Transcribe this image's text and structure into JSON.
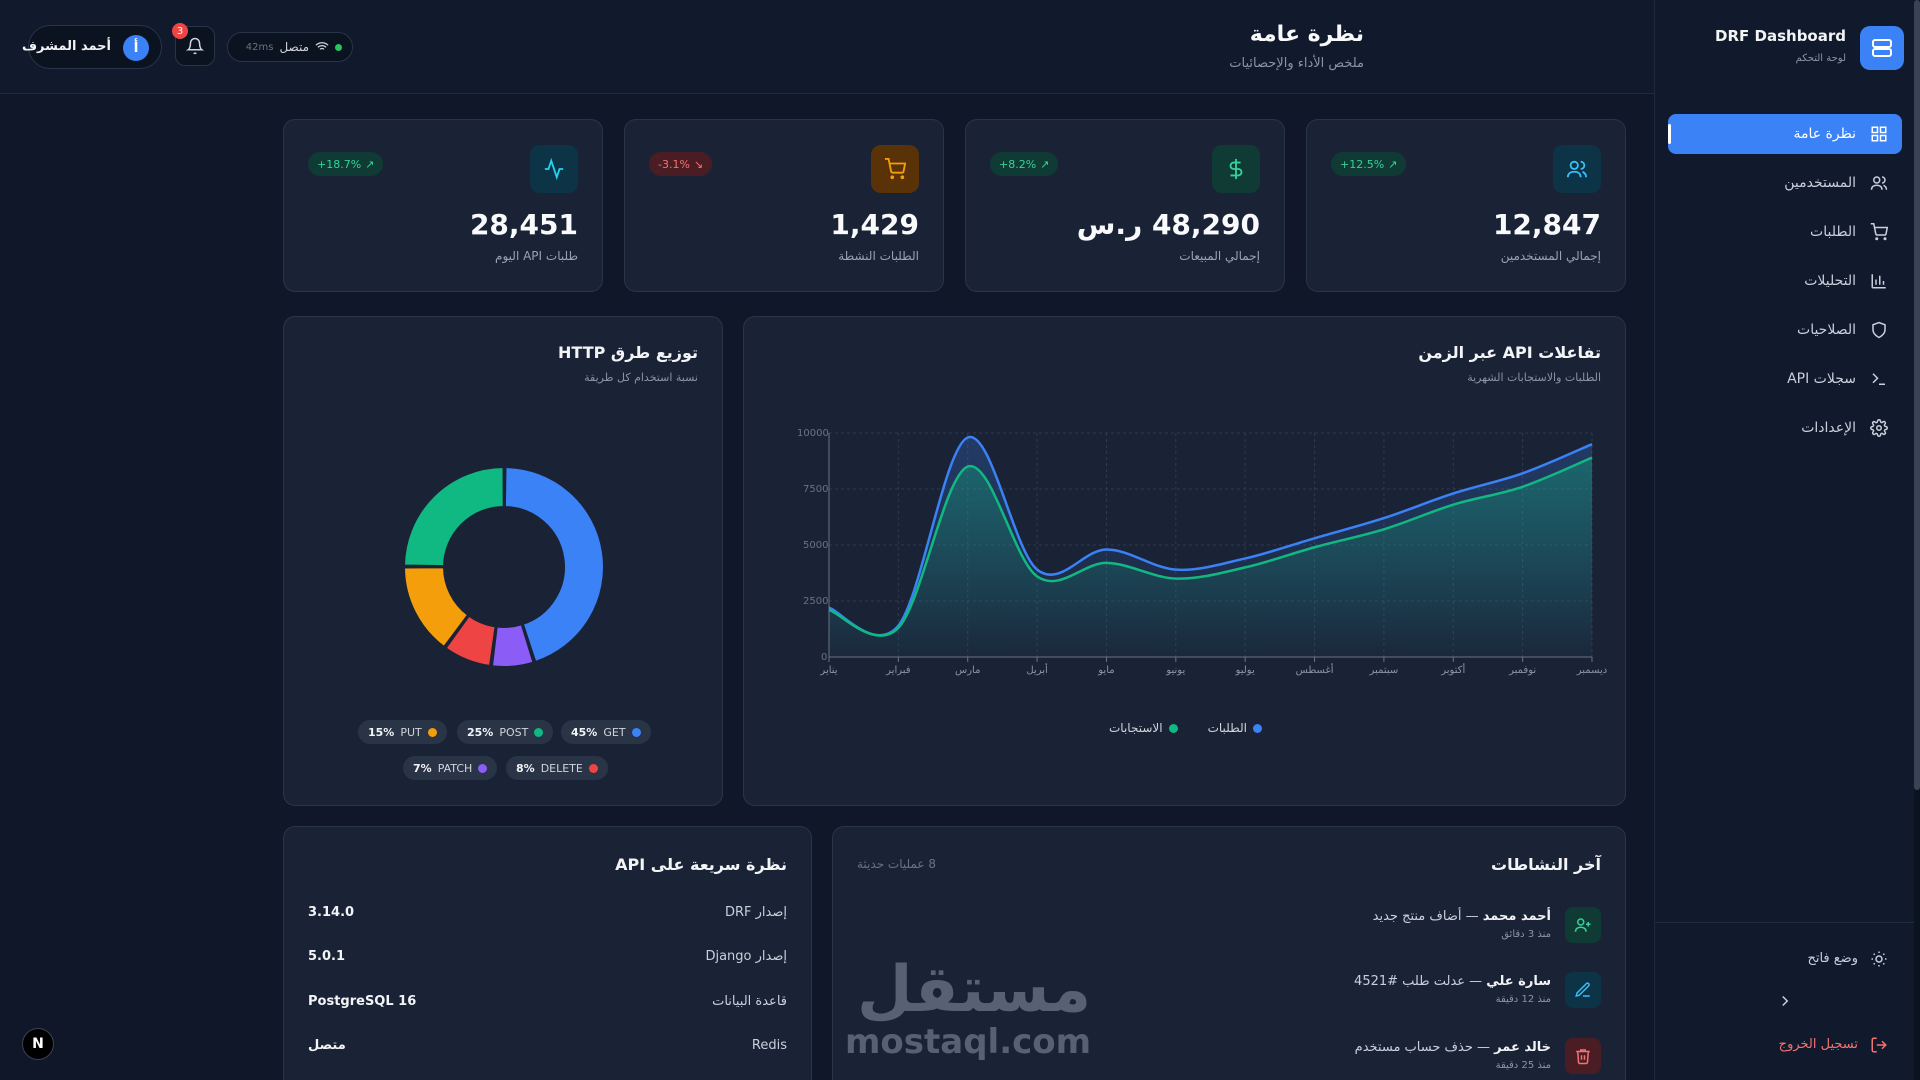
{
  "brand": {
    "title": "DRF Dashboard",
    "subtitle": "لوحة التحكم"
  },
  "sidebar": {
    "items": [
      {
        "label": "نظرة عامة",
        "icon": "grid-icon",
        "active": true
      },
      {
        "label": "المستخدمين",
        "icon": "users-icon"
      },
      {
        "label": "الطلبات",
        "icon": "cart-icon"
      },
      {
        "label": "التحليلات",
        "icon": "bar-chart-icon"
      },
      {
        "label": "الصلاحيات",
        "icon": "shield-icon"
      },
      {
        "label": "سجلات API",
        "icon": "terminal-icon"
      },
      {
        "label": "الإعدادات",
        "icon": "gear-icon"
      }
    ],
    "theme_toggle": "وضع فاتح",
    "logout": "تسجيل الخروج"
  },
  "header": {
    "title": "نظرة عامة",
    "subtitle": "ملخص الأداء والإحصائيات",
    "user_name": "أحمد المشرف",
    "avatar_letter": "أ",
    "notifications_count": "3",
    "status_text": "متصل",
    "latency": "42ms"
  },
  "stats": [
    {
      "value": "12,847",
      "label": "إجمالي المستخدمين",
      "trend": "+12.5%",
      "direction": "up",
      "icon": "users-icon",
      "color": "#38bdf8"
    },
    {
      "value": "48,290 ر.س",
      "label": "إجمالي المبيعات",
      "trend": "+8.2%",
      "direction": "up",
      "icon": "dollar-icon",
      "color": "#34d399"
    },
    {
      "value": "1,429",
      "label": "الطلبات النشطة",
      "trend": "-3.1%",
      "direction": "down",
      "icon": "cart-icon",
      "color": "#f59e0b"
    },
    {
      "value": "28,451",
      "label": "طلبات API اليوم",
      "trend": "+18.7%",
      "direction": "up",
      "icon": "activity-icon",
      "color": "#22d3ee"
    }
  ],
  "line_card": {
    "title": "تفاعلات API عبر الزمن",
    "subtitle": "الطلبات والاستجابات الشهرية"
  },
  "donut_card": {
    "title": "توزيع طرق HTTP",
    "subtitle": "نسبة استخدام كل طريقة"
  },
  "chart_data": [
    {
      "type": "area",
      "title": "تفاعلات API عبر الزمن",
      "categories": [
        "يناير",
        "فبراير",
        "مارس",
        "أبريل",
        "مايو",
        "يونيو",
        "يوليو",
        "أغسطس",
        "سبتمبر",
        "أكتوبر",
        "نوفمبر",
        "ديسمبر"
      ],
      "ylim": [
        0,
        10000
      ],
      "yticks": [
        "0",
        "2500",
        "5000",
        "7500",
        "10000"
      ],
      "grid": true,
      "legend_position": "bottom",
      "series": [
        {
          "name": "الطلبات",
          "color": "#3b82f6",
          "values": [
            2200,
            1400,
            9800,
            3900,
            4800,
            3900,
            4400,
            5300,
            6200,
            7300,
            8200,
            9500
          ]
        },
        {
          "name": "الاستجابات",
          "color": "#10b981",
          "values": [
            2100,
            1300,
            8500,
            3600,
            4200,
            3500,
            4000,
            4900,
            5700,
            6800,
            7600,
            8900
          ]
        }
      ]
    },
    {
      "type": "pie",
      "title": "توزيع طرق HTTP",
      "slices": [
        {
          "label": "GET",
          "value": 45,
          "display": "45%",
          "color": "#3b82f6"
        },
        {
          "label": "PATCH",
          "value": 7,
          "display": "7%",
          "color": "#8b5cf6"
        },
        {
          "label": "DELETE",
          "value": 8,
          "display": "8%",
          "color": "#ef4444"
        },
        {
          "label": "PUT",
          "value": 15,
          "display": "15%",
          "color": "#f59e0b"
        },
        {
          "label": "POST",
          "value": 25,
          "display": "25%",
          "color": "#10b981"
        }
      ]
    }
  ],
  "activity": {
    "title": "آخر النشاطات",
    "count_label": "8 عمليات حديثة",
    "items": [
      {
        "user": "أحمد محمد",
        "action": "— أضاف منتج جديد",
        "time": "منذ 3 دقائق",
        "icon": "user-plus-icon",
        "color": "#34d399",
        "bg": "#0f3b34"
      },
      {
        "user": "سارة علي",
        "action": "— عدلت طلب #4521",
        "time": "منذ 12 دقيقة",
        "icon": "edit-icon",
        "color": "#38bdf8",
        "bg": "#0c3446"
      },
      {
        "user": "خالد عمر",
        "action": "— حذف حساب مستخدم",
        "time": "منذ 25 دقيقة",
        "icon": "trash-icon",
        "color": "#f87171",
        "bg": "#4a1d24"
      }
    ]
  },
  "api_info": {
    "title": "نظرة سريعة على API",
    "rows": [
      {
        "key": "إصدار DRF",
        "value": "3.14.0"
      },
      {
        "key": "إصدار Django",
        "value": "5.0.1"
      },
      {
        "key": "قاعدة البيانات",
        "value": "PostgreSQL 16"
      },
      {
        "key": "Redis",
        "value": "متصل"
      }
    ]
  },
  "watermark": {
    "arabic": "مستقل",
    "latin": "mostaql.com"
  },
  "dev_badge": "N"
}
